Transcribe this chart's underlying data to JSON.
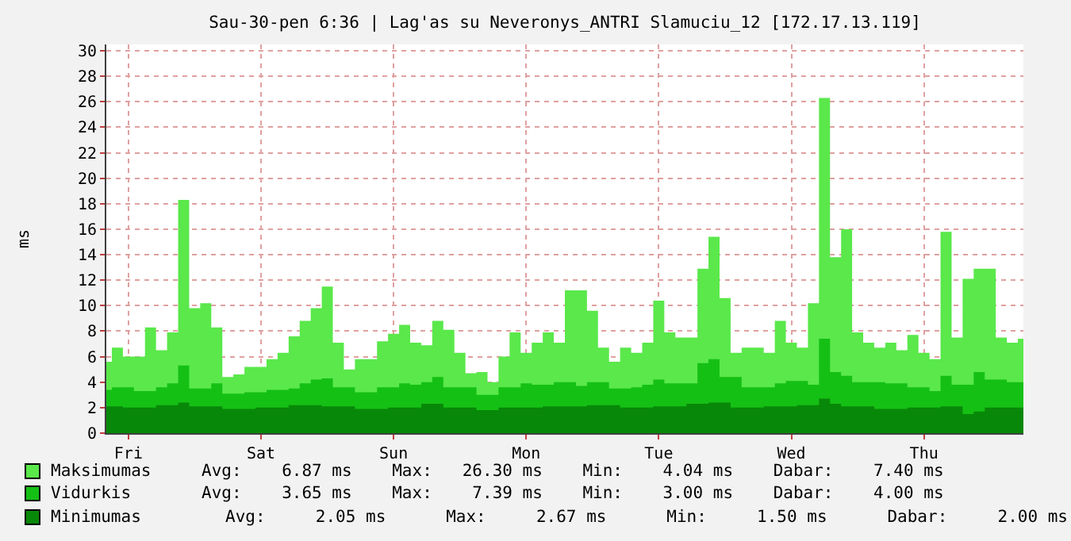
{
  "chart_data": {
    "type": "area",
    "title": "Sau-30-pen 6:36 | Lag'as su Neveronys_ANTRI Slamuciu_12 [172.17.13.119]",
    "ylabel": "ms",
    "ylim": [
      0,
      30.5
    ],
    "categories": [
      null,
      null,
      "Fri",
      null,
      null,
      null,
      null,
      null,
      null,
      null,
      null,
      null,
      null,
      null,
      "Sat",
      null,
      null,
      null,
      null,
      null,
      null,
      null,
      null,
      null,
      null,
      null,
      "Sun",
      null,
      null,
      null,
      null,
      null,
      null,
      null,
      null,
      null,
      null,
      null,
      "Mon",
      null,
      null,
      null,
      null,
      null,
      null,
      null,
      null,
      null,
      null,
      null,
      "Tue",
      null,
      null,
      null,
      null,
      null,
      null,
      null,
      null,
      null,
      null,
      null,
      "Wed",
      null,
      null,
      null,
      null,
      null,
      null,
      null,
      null,
      null,
      null,
      null,
      "Thu",
      null,
      null,
      null,
      null,
      null,
      null,
      null,
      null,
      null
    ],
    "yticks": [
      0,
      2,
      4,
      6,
      8,
      10,
      12,
      14,
      16,
      18,
      20,
      22,
      24,
      26,
      28,
      30
    ],
    "grid": true,
    "legend": "bottom",
    "series": [
      {
        "name": "Maksimumas",
        "color": "#5ae84b",
        "values": [
          5.6,
          6.7,
          6.0,
          6.0,
          8.3,
          6.5,
          7.9,
          18.3,
          9.8,
          10.2,
          8.3,
          4.4,
          4.6,
          5.2,
          5.2,
          5.8,
          6.3,
          7.6,
          8.8,
          9.8,
          11.5,
          7.1,
          5.0,
          5.8,
          5.8,
          7.2,
          7.8,
          8.5,
          7.1,
          6.9,
          8.8,
          8.1,
          6.3,
          4.7,
          4.8,
          4.0,
          6.0,
          7.9,
          6.3,
          7.1,
          7.9,
          7.1,
          11.2,
          11.2,
          9.6,
          6.7,
          5.6,
          6.7,
          6.3,
          7.1,
          10.4,
          7.9,
          7.5,
          7.5,
          12.9,
          15.4,
          10.6,
          6.3,
          6.7,
          6.7,
          6.3,
          8.8,
          7.1,
          6.7,
          10.2,
          26.3,
          13.8,
          16.0,
          7.9,
          7.1,
          6.7,
          7.1,
          6.5,
          7.7,
          6.3,
          5.8,
          15.8,
          7.5,
          12.1,
          12.9,
          12.9,
          7.5,
          7.1,
          7.4
        ]
      },
      {
        "name": "Vidurkis",
        "color": "#15c015",
        "values": [
          3.4,
          3.6,
          3.6,
          3.3,
          3.3,
          3.6,
          3.9,
          5.3,
          3.5,
          3.5,
          3.9,
          3.1,
          3.1,
          3.2,
          3.2,
          3.4,
          3.4,
          3.5,
          3.9,
          4.2,
          4.3,
          3.6,
          3.6,
          3.2,
          3.2,
          3.6,
          3.6,
          3.9,
          3.8,
          4.0,
          4.4,
          3.6,
          3.6,
          3.6,
          3.0,
          3.0,
          3.6,
          3.6,
          3.9,
          3.8,
          3.8,
          4.0,
          4.0,
          3.7,
          4.0,
          4.0,
          3.5,
          3.5,
          3.6,
          3.8,
          4.2,
          3.9,
          3.9,
          3.9,
          5.5,
          5.8,
          4.4,
          4.4,
          3.6,
          3.6,
          3.6,
          3.9,
          4.1,
          4.1,
          3.8,
          7.4,
          4.8,
          4.5,
          4.0,
          4.0,
          4.0,
          3.9,
          3.9,
          3.6,
          3.6,
          3.3,
          4.5,
          3.8,
          3.8,
          4.8,
          4.2,
          4.2,
          4.0,
          4.0
        ]
      },
      {
        "name": "Minimumas",
        "color": "#088808",
        "values": [
          2.1,
          2.1,
          2.0,
          2.0,
          2.0,
          2.2,
          2.2,
          2.4,
          2.1,
          2.1,
          2.1,
          1.9,
          1.9,
          1.9,
          2.0,
          2.0,
          2.0,
          2.2,
          2.2,
          2.2,
          2.1,
          2.1,
          2.1,
          1.9,
          1.9,
          1.9,
          2.0,
          2.0,
          2.0,
          2.3,
          2.3,
          2.0,
          2.0,
          2.0,
          1.8,
          1.8,
          2.0,
          2.0,
          2.0,
          2.0,
          2.1,
          2.1,
          2.1,
          2.1,
          2.2,
          2.2,
          2.2,
          2.0,
          2.0,
          2.0,
          2.1,
          2.1,
          2.1,
          2.3,
          2.3,
          2.4,
          2.4,
          2.0,
          2.0,
          2.0,
          2.1,
          2.1,
          2.1,
          2.2,
          2.2,
          2.7,
          2.3,
          2.1,
          2.1,
          2.1,
          1.9,
          1.9,
          1.9,
          2.0,
          2.0,
          2.0,
          2.1,
          2.1,
          1.5,
          1.7,
          2.0,
          2.0,
          2.0,
          2.0
        ]
      }
    ],
    "annotations": [
      "Avg:    6.87 ms    Max:   26.30 ms    Min:    4.04 ms    Dabar:    7.40 ms",
      "Avg:    3.65 ms    Max:    7.39 ms    Min:    3.00 ms    Dabar:    4.00 ms",
      "Avg:     2.05 ms      Max:     2.67 ms      Min:     1.50 ms      Dabar:     2.00 ms"
    ]
  }
}
